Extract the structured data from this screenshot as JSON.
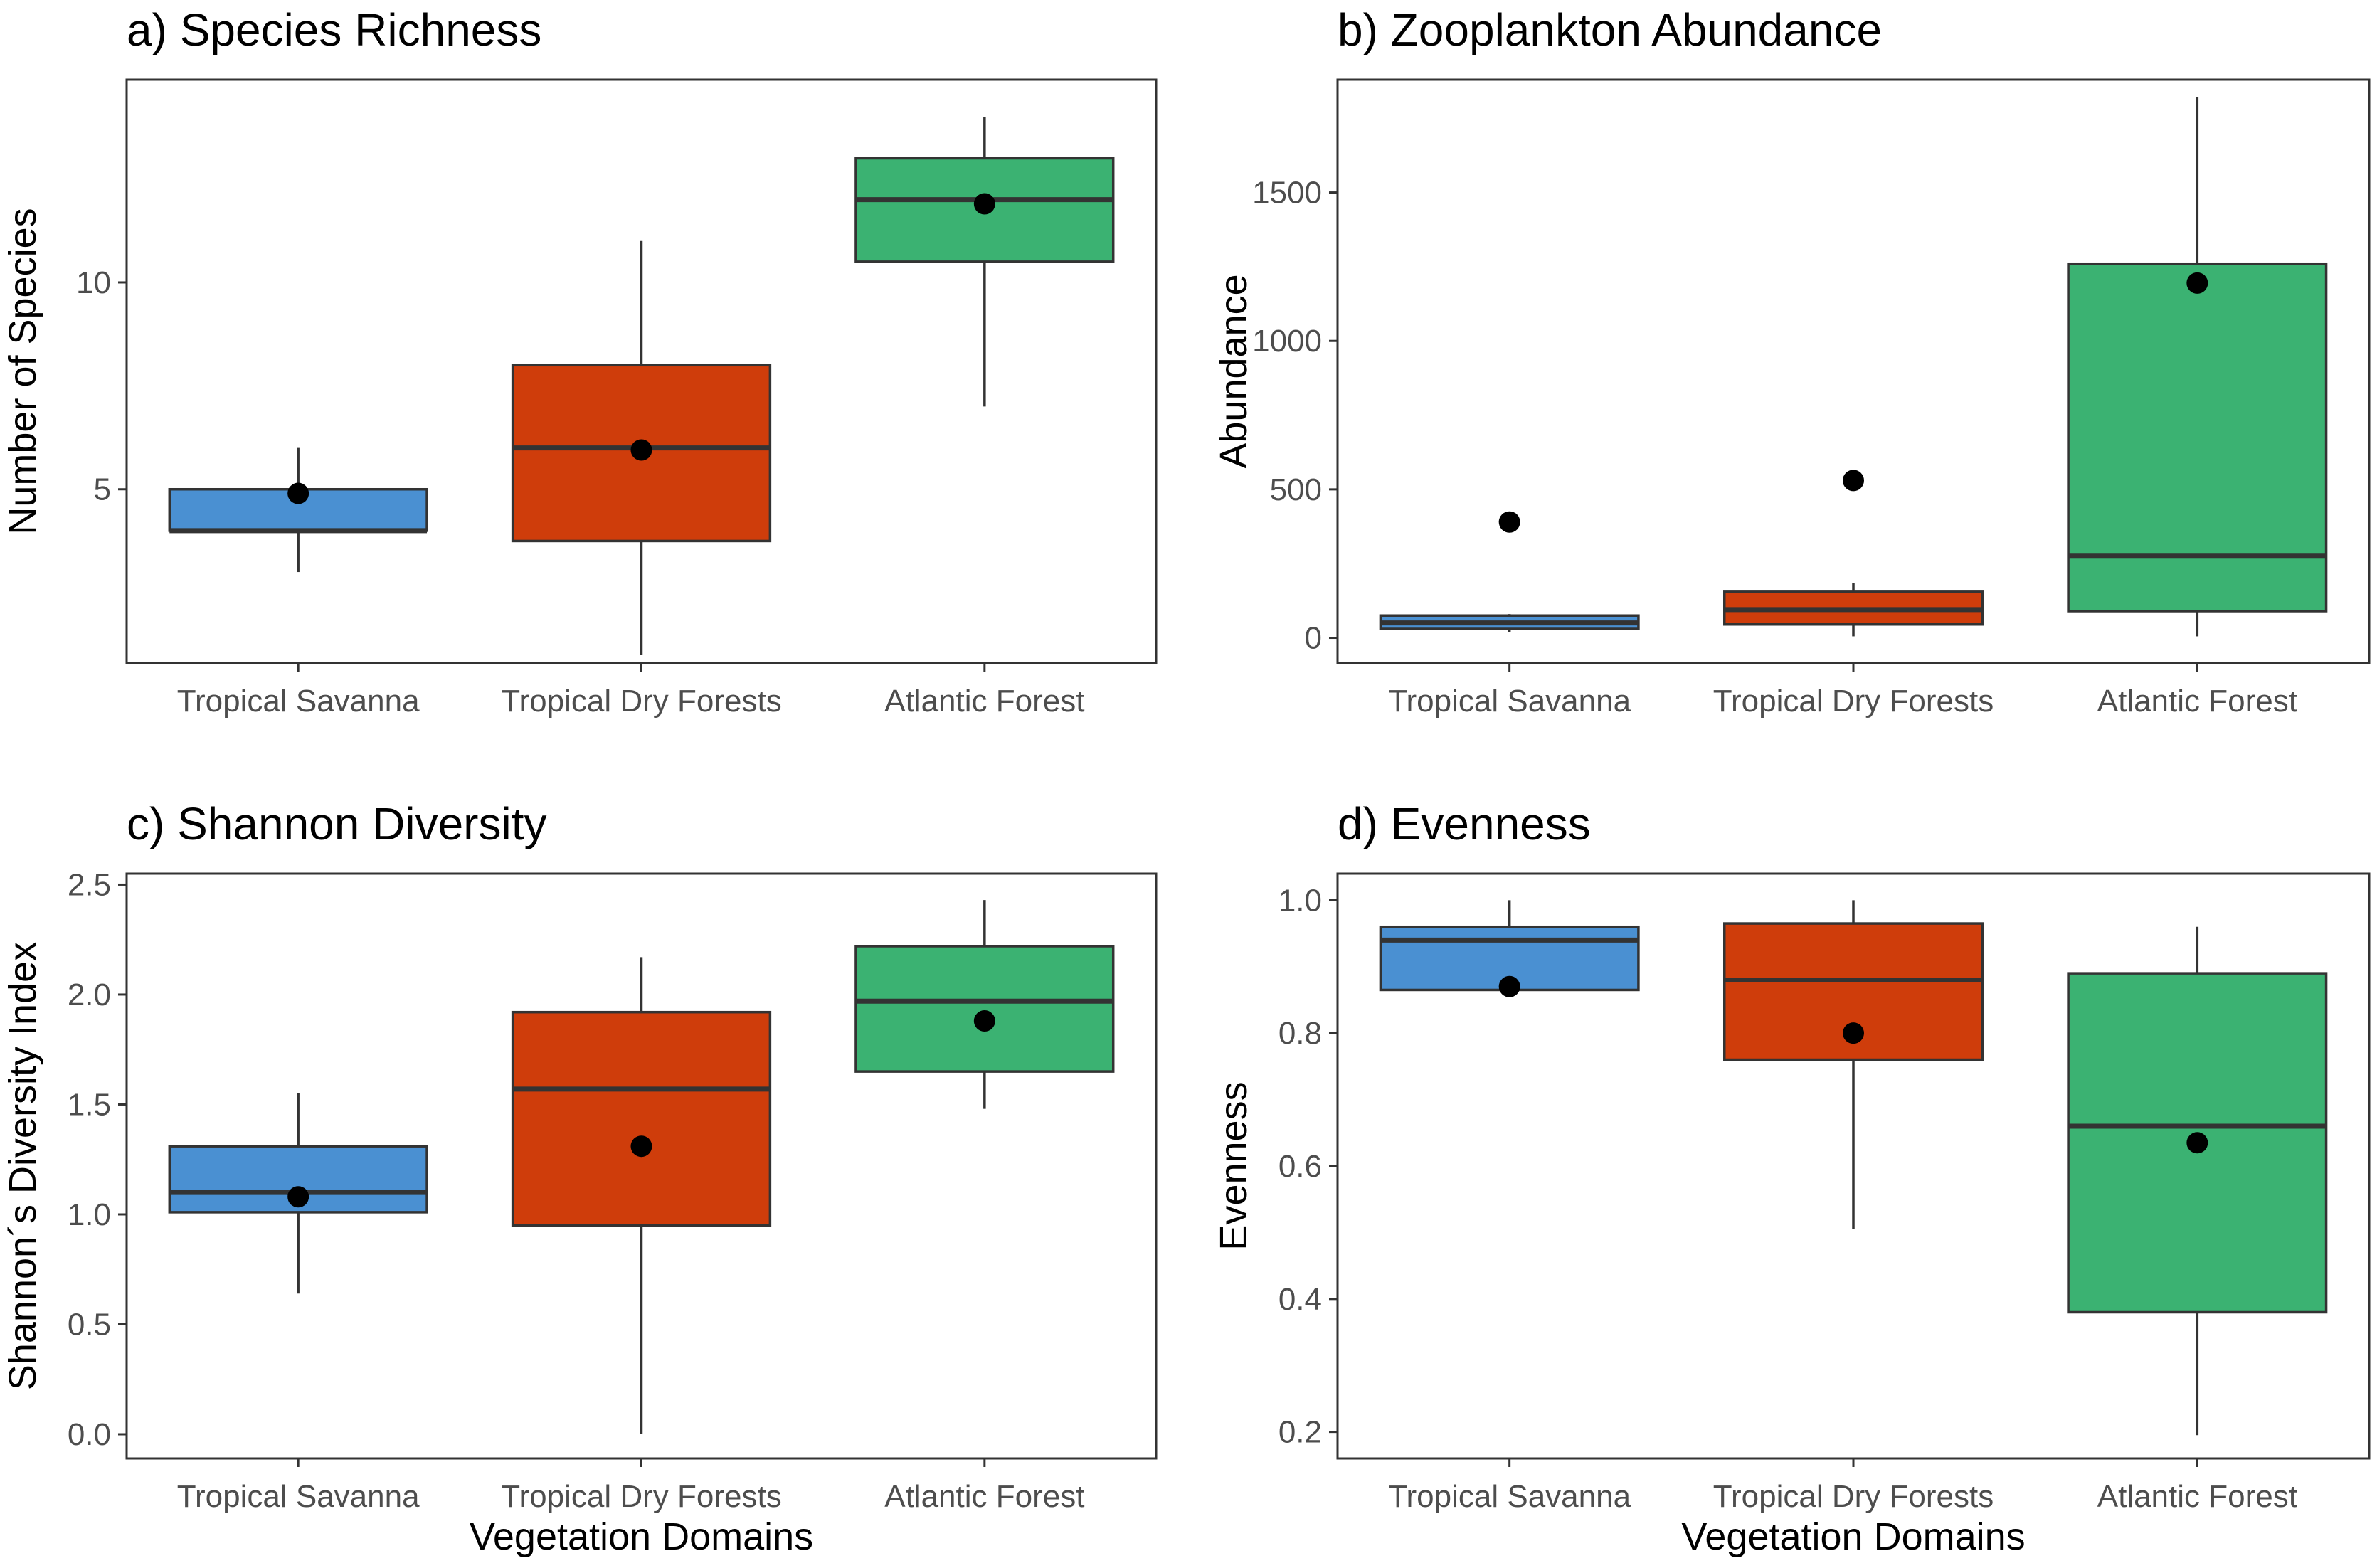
{
  "colors": {
    "Tropical Savanna": "#4a90d2",
    "Tropical Dry Forests": "#cf3d0b",
    "Atlantic Forest": "#3bb272"
  },
  "chart_data": [
    {
      "type": "boxplot",
      "title": "a) Species Richness",
      "xlabel": "",
      "ylabel": "Number of Species",
      "categories": [
        "Tropical Savanna",
        "Tropical Dry Forests",
        "Atlantic Forest"
      ],
      "ylim": [
        0.8,
        14.9
      ],
      "yticks": [
        5,
        10
      ],
      "ytick_labels": [
        "5",
        "10"
      ],
      "boxes": [
        {
          "category": "Tropical Savanna",
          "min": 3,
          "q1": 4,
          "median": 4,
          "q3": 5,
          "max": 6,
          "mean": 4.9
        },
        {
          "category": "Tropical Dry Forests",
          "min": 1,
          "q1": 3.75,
          "median": 6,
          "q3": 8,
          "max": 11,
          "mean": 5.95
        },
        {
          "category": "Atlantic Forest",
          "min": 7,
          "q1": 10.5,
          "median": 12,
          "q3": 13,
          "max": 14,
          "mean": 11.9
        }
      ]
    },
    {
      "type": "boxplot",
      "title": "b) Zooplankton Abundance",
      "xlabel": "",
      "ylabel": "Abundance",
      "categories": [
        "Tropical Savanna",
        "Tropical Dry Forests",
        "Atlantic Forest"
      ],
      "ylim": [
        -85,
        1880
      ],
      "yticks": [
        0,
        500,
        1000,
        1500
      ],
      "ytick_labels": [
        "0",
        "500",
        "1000",
        "1500"
      ],
      "boxes": [
        {
          "category": "Tropical Savanna",
          "min": 20,
          "q1": 30,
          "median": 50,
          "q3": 75,
          "max": 80,
          "mean": 390
        },
        {
          "category": "Tropical Dry Forests",
          "min": 5,
          "q1": 45,
          "median": 95,
          "q3": 155,
          "max": 185,
          "mean": 530
        },
        {
          "category": "Atlantic Forest",
          "min": 5,
          "q1": 90,
          "median": 275,
          "q3": 1260,
          "max": 1820,
          "mean": 1195
        }
      ]
    },
    {
      "type": "boxplot",
      "title": "c) Shannon Diversity",
      "xlabel": "Vegetation Domains",
      "ylabel": "Shannon´s Diversity Index",
      "categories": [
        "Tropical Savanna",
        "Tropical Dry Forests",
        "Atlantic Forest"
      ],
      "ylim": [
        -0.11,
        2.55
      ],
      "yticks": [
        0,
        0.5,
        1,
        1.5,
        2,
        2.5
      ],
      "ytick_labels": [
        "0.0",
        "0.5",
        "1.0",
        "1.5",
        "2.0",
        "2.5"
      ],
      "boxes": [
        {
          "category": "Tropical Savanna",
          "min": 0.64,
          "q1": 1.01,
          "median": 1.1,
          "q3": 1.31,
          "max": 1.55,
          "mean": 1.08
        },
        {
          "category": "Tropical Dry Forests",
          "min": 0,
          "q1": 0.95,
          "median": 1.57,
          "q3": 1.92,
          "max": 2.17,
          "mean": 1.31
        },
        {
          "category": "Atlantic Forest",
          "min": 1.48,
          "q1": 1.65,
          "median": 1.97,
          "q3": 2.22,
          "max": 2.43,
          "mean": 1.88
        }
      ]
    },
    {
      "type": "boxplot",
      "title": "d) Evenness",
      "xlabel": "Vegetation Domains",
      "ylabel": "Evenness",
      "categories": [
        "Tropical Savanna",
        "Tropical Dry Forests",
        "Atlantic Forest"
      ],
      "ylim": [
        0.16,
        1.04
      ],
      "yticks": [
        0.2,
        0.4,
        0.6,
        0.8,
        1
      ],
      "ytick_labels": [
        "0.2",
        "0.4",
        "0.6",
        "0.8",
        "1.0"
      ],
      "boxes": [
        {
          "category": "Tropical Savanna",
          "min": 0.865,
          "q1": 0.865,
          "median": 0.94,
          "q3": 0.96,
          "max": 1.0,
          "mean": 0.87
        },
        {
          "category": "Tropical Dry Forests",
          "min": 0.505,
          "q1": 0.76,
          "median": 0.88,
          "q3": 0.965,
          "max": 1.0,
          "mean": 0.8
        },
        {
          "category": "Atlantic Forest",
          "min": 0.195,
          "q1": 0.38,
          "median": 0.66,
          "q3": 0.89,
          "max": 0.96,
          "mean": 0.635
        }
      ]
    }
  ]
}
